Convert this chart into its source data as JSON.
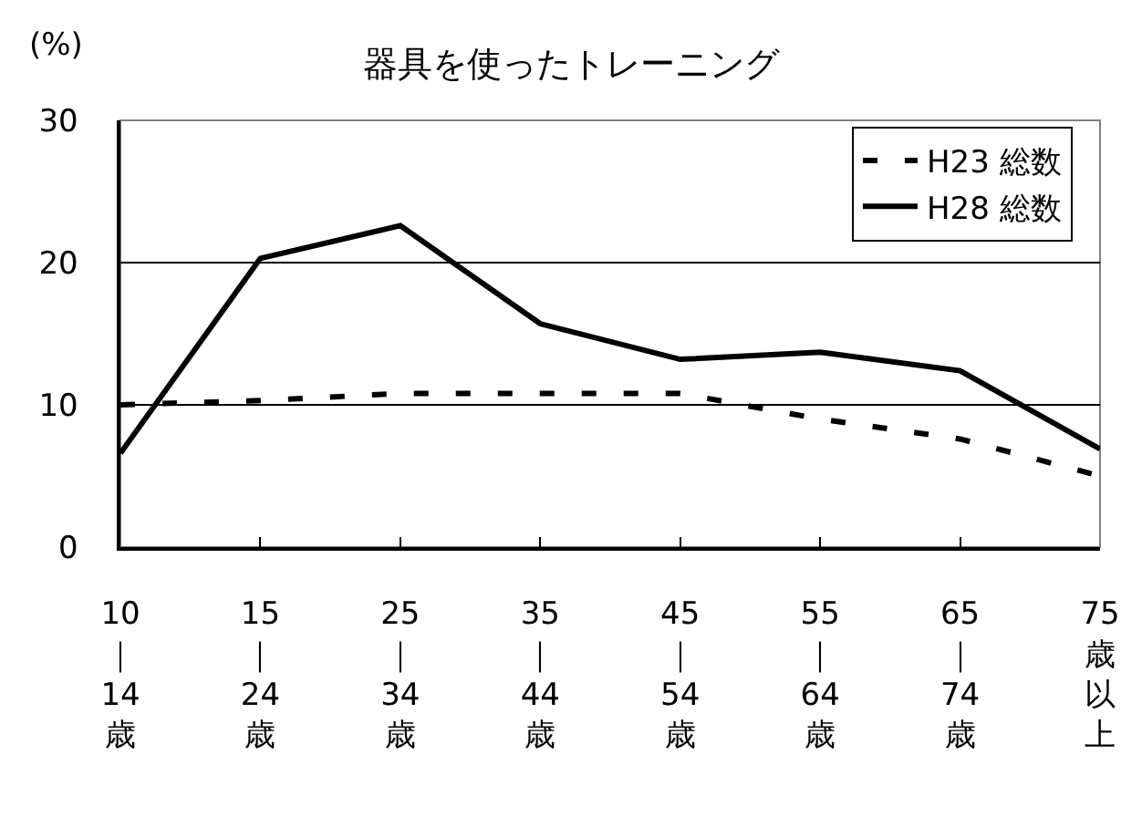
{
  "chart_data": {
    "type": "line",
    "title": "器具を使ったトレーニング",
    "ylabel": "(%)",
    "categories": [
      "10｜14歳",
      "15｜24歳",
      "25｜34歳",
      "35｜44歳",
      "45｜54歳",
      "55｜64歳",
      "65｜74歳",
      "75歳以上"
    ],
    "series": [
      {
        "name": "H23 総数",
        "color": "#000000",
        "line_style": "dashed",
        "values": [
          10.0,
          10.3,
          10.8,
          10.8,
          10.8,
          9.0,
          7.6,
          5.0
        ]
      },
      {
        "name": "H28 総数",
        "color": "#000000",
        "line_style": "solid",
        "values": [
          6.6,
          20.3,
          22.6,
          15.7,
          13.2,
          13.7,
          12.4,
          6.9
        ]
      }
    ],
    "ylim": [
      0,
      30
    ],
    "yticks": [
      0,
      10,
      20,
      30
    ],
    "grid": "y",
    "legend": "top right"
  }
}
